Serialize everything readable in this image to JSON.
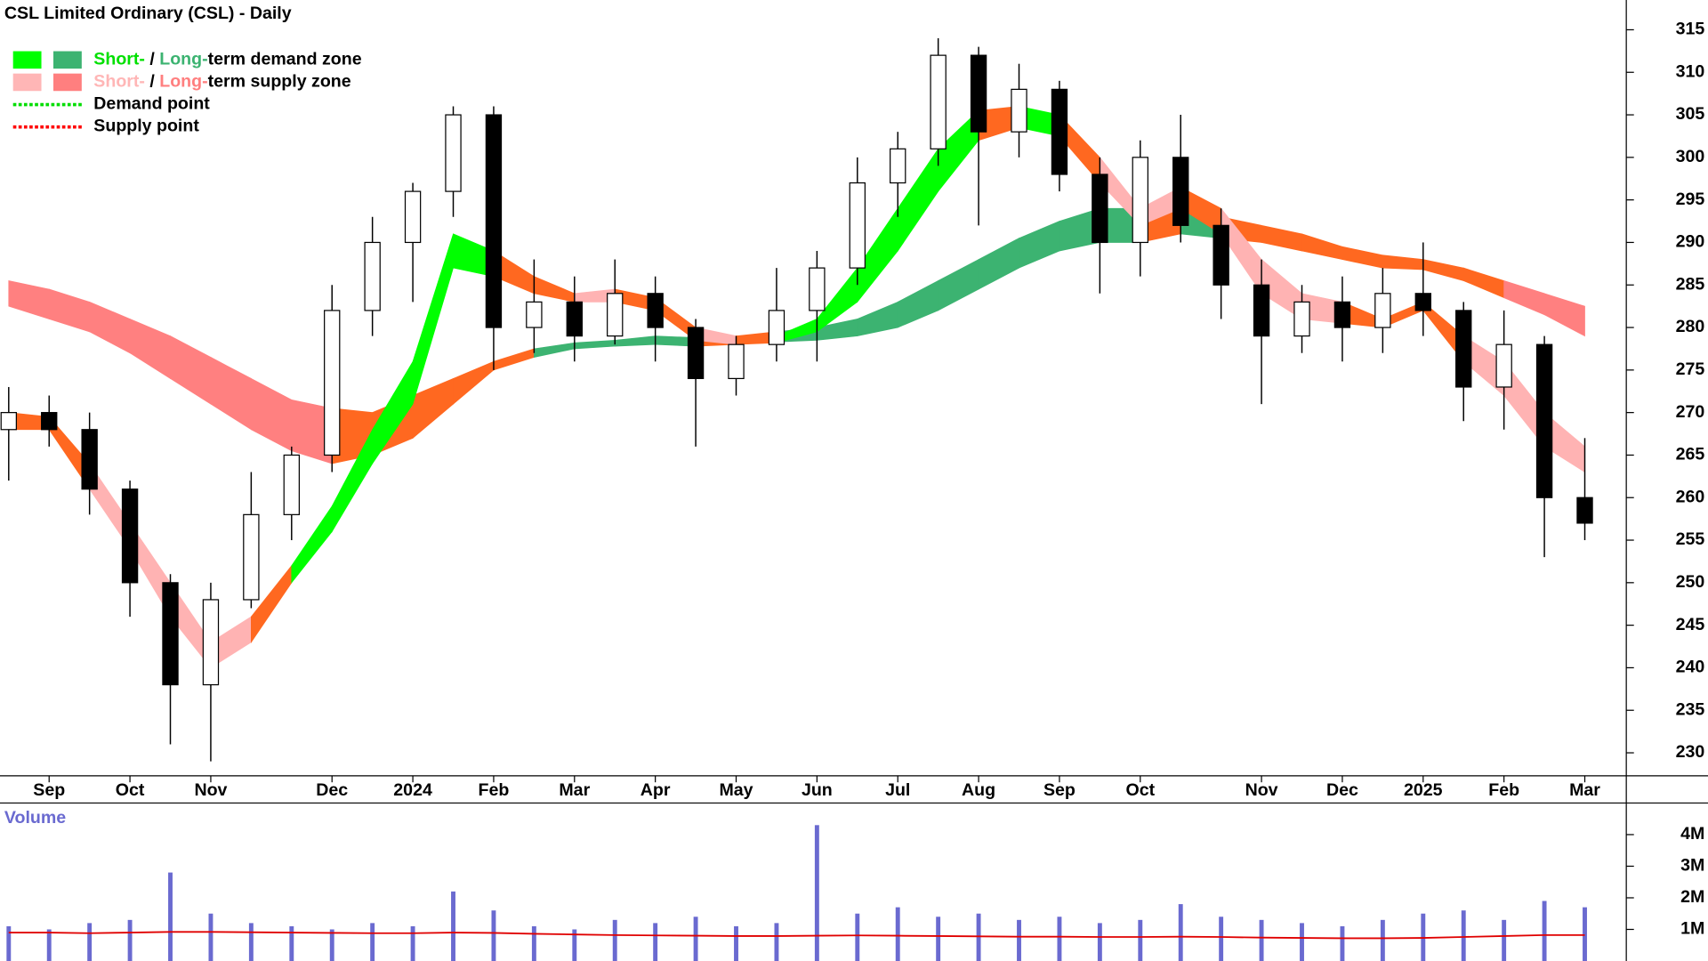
{
  "chart_data": [
    {
      "type": "candlestick",
      "title": "CSL Limited Ordinary (CSL) - Daily",
      "categories": [
        null,
        "Sep",
        null,
        "Oct",
        null,
        "Nov",
        null,
        null,
        "Dec",
        null,
        "2024",
        null,
        "Feb",
        null,
        "Mar",
        null,
        "Apr",
        null,
        "May",
        null,
        "Jun",
        null,
        "Jul",
        null,
        "Aug",
        null,
        "Sep",
        null,
        "Oct",
        null,
        null,
        "Nov",
        null,
        "Dec",
        null,
        "2025",
        null,
        "Feb",
        null,
        "Mar"
      ],
      "open": [
        268,
        270,
        268,
        261,
        250,
        238,
        248,
        258,
        265,
        282,
        290,
        296,
        305,
        280,
        283,
        279,
        284,
        280,
        274,
        278,
        282,
        287,
        297,
        301,
        312,
        303,
        308,
        298,
        290,
        300,
        292,
        285,
        279,
        283,
        280,
        284,
        282,
        273,
        278,
        260
      ],
      "high": [
        273,
        272,
        270,
        262,
        251,
        250,
        263,
        266,
        285,
        293,
        297,
        306,
        306,
        288,
        286,
        288,
        286,
        281,
        279,
        287,
        289,
        300,
        303,
        314,
        313,
        311,
        309,
        300,
        302,
        305,
        294,
        288,
        285,
        286,
        287,
        290,
        283,
        282,
        279,
        267
      ],
      "low": [
        262,
        266,
        258,
        246,
        231,
        229,
        247,
        255,
        263,
        279,
        283,
        293,
        275,
        277,
        276,
        278,
        276,
        266,
        272,
        276,
        276,
        285,
        293,
        299,
        292,
        300,
        296,
        284,
        286,
        290,
        281,
        271,
        277,
        276,
        277,
        279,
        269,
        268,
        253,
        255
      ],
      "close": [
        270,
        268,
        261,
        250,
        238,
        248,
        258,
        265,
        282,
        290,
        296,
        305,
        280,
        283,
        279,
        284,
        280,
        274,
        278,
        282,
        287,
        297,
        301,
        312,
        303,
        308,
        298,
        290,
        300,
        292,
        285,
        279,
        283,
        280,
        284,
        282,
        273,
        278,
        260,
        257
      ],
      "up_color": "#ffffff",
      "down_color": "#000000",
      "bands": [
        {
          "upper": [
            285.5,
            284.5,
            283,
            281,
            279,
            276.5,
            274,
            271.5,
            270.5,
            270,
            272,
            274,
            276,
            277.5,
            278.2,
            278.5,
            279,
            278.8,
            279,
            279.5,
            280,
            281,
            283,
            285.5,
            288,
            290.5,
            292.5,
            294,
            294,
            294,
            293,
            292,
            291,
            289.5,
            288.5,
            288,
            287,
            285.5,
            284,
            282.5
          ],
          "lower": [
            282.5,
            281,
            279.5,
            277,
            274,
            271,
            268,
            265.5,
            264,
            265,
            267,
            271,
            275,
            276.5,
            277.5,
            277.8,
            278,
            277.8,
            278,
            278.3,
            278.5,
            279,
            280,
            282,
            284.5,
            287,
            289,
            290,
            290,
            291,
            290.5,
            290,
            289,
            288,
            287,
            286.8,
            285.5,
            283.5,
            281.5,
            279
          ],
          "colors": [
            "#ff8080",
            "#ff8080",
            "#ff8080",
            "#ff8080",
            "#ff8080",
            "#ff8080",
            "#ff8080",
            "#ff8080",
            "#ff6820",
            "#ff6820",
            "#ff6820",
            "#ff6820",
            "#ff6820",
            "#3cb371",
            "#3cb371",
            "#3cb371",
            "#3cb371",
            "#ff6820",
            "#ff6820",
            "#3cb371",
            "#3cb371",
            "#3cb371",
            "#3cb371",
            "#3cb371",
            "#3cb371",
            "#3cb371",
            "#3cb371",
            "#3cb371",
            "#ff6820",
            "#3cb371",
            "#ff6820",
            "#ff6820",
            "#ff6820",
            "#ff6820",
            "#ff6820",
            "#ff6820",
            "#ff6820",
            "#ff8080",
            "#ff8080",
            "#ff8080"
          ]
        },
        {
          "upper": [
            270,
            269.5,
            264,
            257,
            250,
            243,
            246,
            252,
            259,
            268,
            276,
            291,
            289,
            286,
            284,
            284.5,
            283.5,
            280,
            279,
            279,
            281,
            287,
            294,
            301,
            305.5,
            306,
            305,
            300,
            294,
            296.5,
            294,
            288,
            284,
            283,
            281,
            283,
            279,
            276,
            270,
            266
          ],
          "lower": [
            268,
            268,
            261,
            254,
            246,
            240,
            243,
            250,
            256,
            264,
            271,
            287,
            286,
            284,
            283,
            283,
            282,
            278.5,
            278,
            278.2,
            279.5,
            283,
            289,
            296,
            302,
            303.5,
            302.5,
            297,
            292,
            294,
            291,
            284,
            281,
            280.5,
            280,
            282,
            276,
            272,
            266,
            263
          ],
          "colors": [
            "#ff6820",
            "#ff6820",
            "#ffb3b3",
            "#ffb3b3",
            "#ffb3b3",
            "#ffb3b3",
            "#ff6820",
            "#00ff00",
            "#00ff00",
            "#00ff00",
            "#00ff00",
            "#00ff00",
            "#ff6820",
            "#ff6820",
            "#ffb3b3",
            "#ff6820",
            "#ff6820",
            "#ffb3b3",
            "#ff6820",
            "#00ff00",
            "#00ff00",
            "#00ff00",
            "#00ff00",
            "#00ff00",
            "#ff6820",
            "#00ff00",
            "#ff6820",
            "#ffb3b3",
            "#ffb3b3",
            "#ff6820",
            "#ffb3b3",
            "#ffb3b3",
            "#ffb3b3",
            "#ff6820",
            "#ff6820",
            "#ff6820",
            "#ffb3b3",
            "#ffb3b3",
            "#ffb3b3",
            "#ffb3b3"
          ]
        }
      ],
      "ylim": [
        227.3,
        318.5
      ],
      "yticks": [
        230,
        235,
        240,
        245,
        250,
        255,
        260,
        265,
        270,
        275,
        280,
        285,
        290,
        295,
        300,
        305,
        310,
        315
      ],
      "legend": [
        {
          "swatches": [
            "#00ff00",
            "#3cb371"
          ],
          "parts": [
            {
              "text": "Short-",
              "color": "#00e000"
            },
            {
              "text": " / ",
              "color": "#000000"
            },
            {
              "text": "Long-",
              "color": "#3cb371"
            },
            {
              "text": "term demand zone",
              "color": "#000000"
            }
          ]
        },
        {
          "swatches": [
            "#ffb6b6",
            "#ff7f7f"
          ],
          "parts": [
            {
              "text": "Short-",
              "color": "#ffb6b6"
            },
            {
              "text": " / ",
              "color": "#000000"
            },
            {
              "text": "Long-",
              "color": "#ff7f7f"
            },
            {
              "text": "term supply zone",
              "color": "#000000"
            }
          ]
        },
        {
          "line": "#00dd00",
          "parts": [
            {
              "text": "Demand point",
              "color": "#000000"
            }
          ]
        },
        {
          "line": "#ff0000",
          "parts": [
            {
              "text": "Supply point",
              "color": "#000000"
            }
          ]
        }
      ]
    },
    {
      "type": "bar",
      "title": "Volume",
      "color": "#6a6ad0",
      "average_color": "#e00000",
      "values": [
        1100000,
        1000000,
        1200000,
        1300000,
        2800000,
        1500000,
        1200000,
        1100000,
        1000000,
        1200000,
        1100000,
        2200000,
        1600000,
        1100000,
        1000000,
        1300000,
        1200000,
        1400000,
        1100000,
        1200000,
        4300000,
        1500000,
        1700000,
        1400000,
        1500000,
        1300000,
        1400000,
        1200000,
        1300000,
        1800000,
        1400000,
        1300000,
        1200000,
        1100000,
        1300000,
        1500000,
        1600000,
        1300000,
        1900000,
        1700000
      ],
      "average": [
        900000,
        900000,
        880000,
        900000,
        920000,
        920000,
        910000,
        900000,
        890000,
        880000,
        880000,
        900000,
        890000,
        860000,
        840000,
        820000,
        810000,
        800000,
        790000,
        790000,
        800000,
        810000,
        800000,
        790000,
        780000,
        770000,
        770000,
        760000,
        760000,
        770000,
        760000,
        740000,
        730000,
        720000,
        720000,
        730000,
        760000,
        790000,
        820000,
        820000
      ],
      "ylim": [
        0,
        5000000
      ],
      "yticks": [
        {
          "value": 1000000,
          "label": "1M"
        },
        {
          "value": 2000000,
          "label": "2M"
        },
        {
          "value": 3000000,
          "label": "3M"
        },
        {
          "value": 4000000,
          "label": "4M"
        }
      ]
    }
  ]
}
